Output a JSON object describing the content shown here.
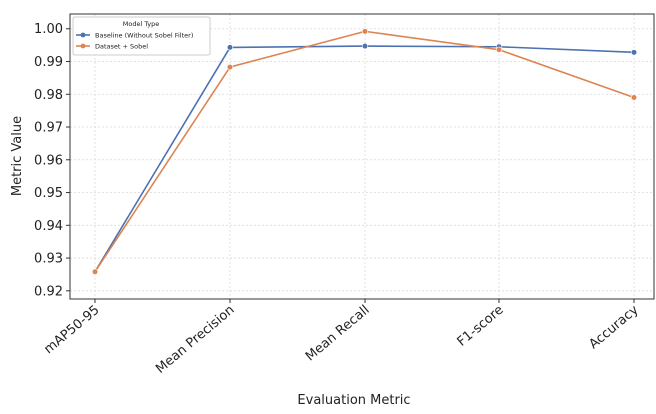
{
  "chart_data": {
    "type": "line",
    "title": "",
    "xlabel": "Evaluation Metric",
    "ylabel": "Metric Value",
    "categories": [
      "mAP50-95",
      "Mean Precision",
      "Mean Recall",
      "F1-score",
      "Accuracy"
    ],
    "series": [
      {
        "name": "Baseline (Without Sobel Filter)",
        "color": "#4c72b0",
        "values": [
          0.9258,
          0.9943,
          0.9947,
          0.9945,
          0.9928
        ]
      },
      {
        "name": "Dataset + Sobel",
        "color": "#dd8452",
        "values": [
          0.9258,
          0.9883,
          0.9992,
          0.9936,
          0.979
        ]
      }
    ],
    "yticks": [
      "0.92",
      "0.93",
      "0.94",
      "0.95",
      "0.96",
      "0.97",
      "0.98",
      "0.99",
      "1.00"
    ],
    "ylim": [
      0.9175,
      1.0045
    ],
    "grid": true,
    "legend": {
      "title": "Model Type",
      "placement": "top-left"
    }
  }
}
